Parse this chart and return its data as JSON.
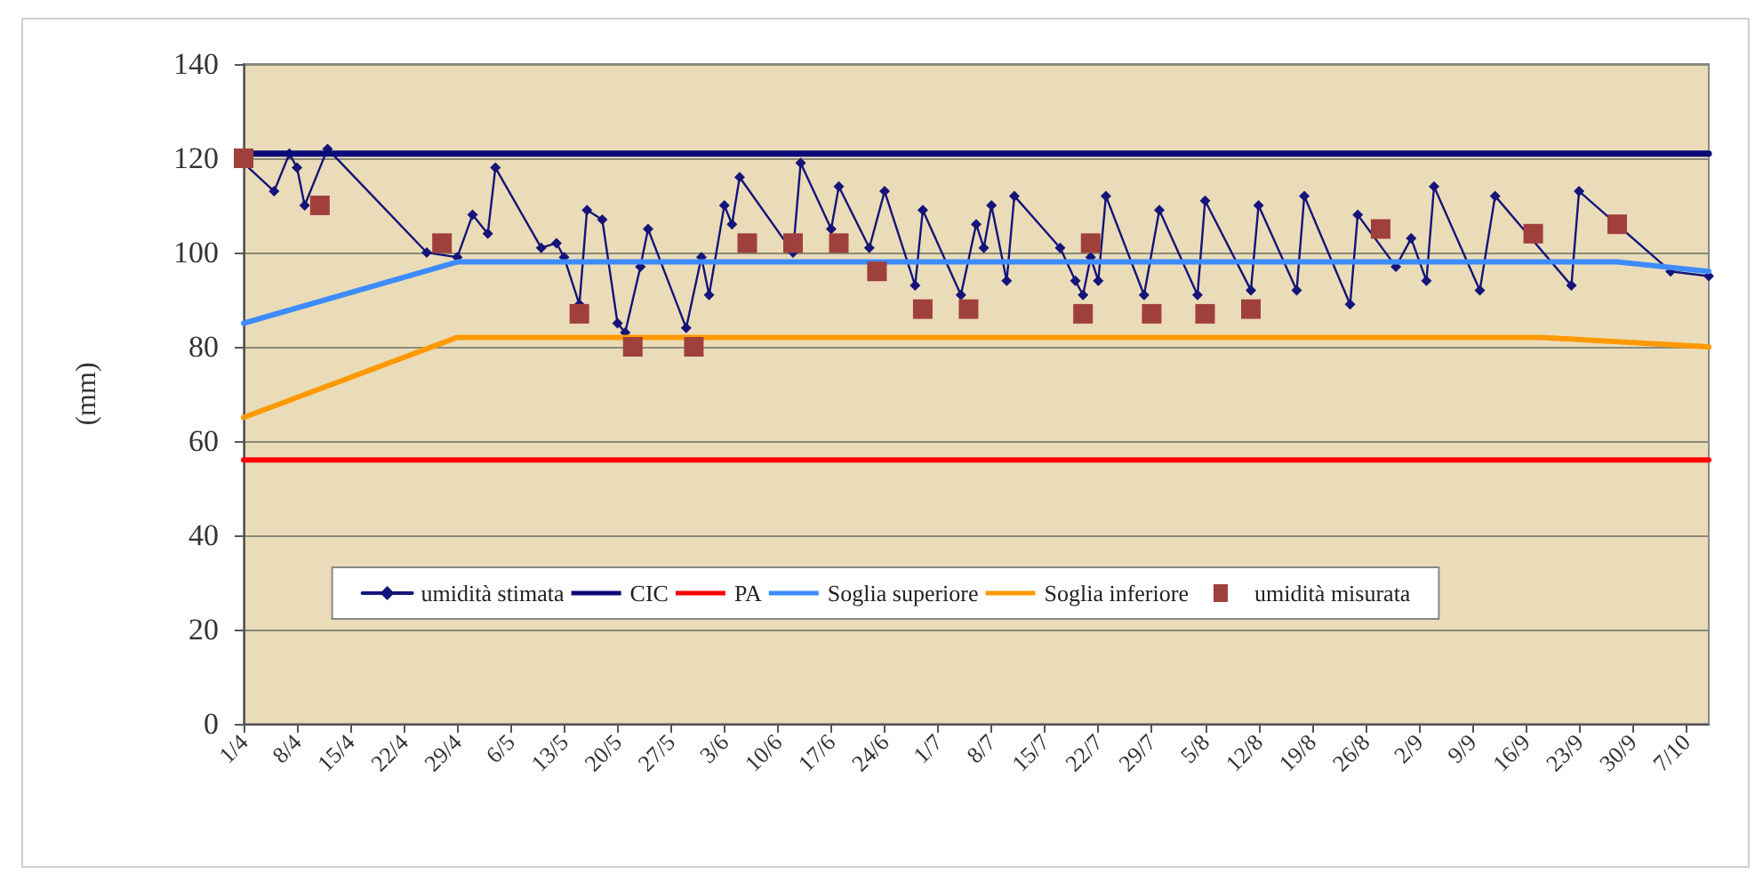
{
  "chart_data": {
    "type": "line",
    "ylabel": "(mm)",
    "xlim": [
      "--04-01",
      "--10-10"
    ],
    "xticks": [
      {
        "value": "--04-01",
        "label": "1/4"
      },
      {
        "value": "--04-08",
        "label": "8/4"
      },
      {
        "value": "--04-15",
        "label": "15/4"
      },
      {
        "value": "--04-22",
        "label": "22/4"
      },
      {
        "value": "--04-29",
        "label": "29/4"
      },
      {
        "value": "--05-06",
        "label": "6/5"
      },
      {
        "value": "--05-13",
        "label": "13/5"
      },
      {
        "value": "--05-20",
        "label": "20/5"
      },
      {
        "value": "--05-27",
        "label": "27/5"
      },
      {
        "value": "--06-03",
        "label": "3/6"
      },
      {
        "value": "--06-10",
        "label": "10/6"
      },
      {
        "value": "--06-17",
        "label": "17/6"
      },
      {
        "value": "--06-24",
        "label": "24/6"
      },
      {
        "value": "--07-01",
        "label": "1/7"
      },
      {
        "value": "--07-08",
        "label": "8/7"
      },
      {
        "value": "--07-15",
        "label": "15/7"
      },
      {
        "value": "--07-22",
        "label": "22/7"
      },
      {
        "value": "--07-29",
        "label": "29/7"
      },
      {
        "value": "--08-05",
        "label": "5/8"
      },
      {
        "value": "--08-12",
        "label": "12/8"
      },
      {
        "value": "--08-19",
        "label": "19/8"
      },
      {
        "value": "--08-26",
        "label": "26/8"
      },
      {
        "value": "--09-02",
        "label": "2/9"
      },
      {
        "value": "--09-09",
        "label": "9/9"
      },
      {
        "value": "--09-16",
        "label": "16/9"
      },
      {
        "value": "--09-23",
        "label": "23/9"
      },
      {
        "value": "--09-30",
        "label": "30/9"
      },
      {
        "value": "--10-07",
        "label": "7/10"
      }
    ],
    "ylim": [
      0,
      140
    ],
    "yticks": [
      0,
      20,
      40,
      60,
      80,
      100,
      120,
      140
    ],
    "grid": "y",
    "legend": "bottom",
    "series": [
      {
        "name": "umidità stimata",
        "color": "#14147a",
        "marker": "diamond",
        "x": [
          "--04-01",
          "--04-05",
          "--04-07",
          "--04-08",
          "--04-09",
          "--04-12",
          "--04-25",
          "--04-29",
          "--05-01",
          "--05-03",
          "--05-04",
          "--05-10",
          "--05-12",
          "--05-13",
          "--05-15",
          "--05-16",
          "--05-18",
          "--05-20",
          "--05-21",
          "--05-23",
          "--05-24",
          "--05-29",
          "--05-31",
          "--06-01",
          "--06-03",
          "--06-04",
          "--06-05",
          "--06-12",
          "--06-13",
          "--06-17",
          "--06-18",
          "--06-22",
          "--06-24",
          "--06-28",
          "--06-29",
          "--07-04",
          "--07-06",
          "--07-07",
          "--07-08",
          "--07-10",
          "--07-11",
          "--07-17",
          "--07-19",
          "--07-20",
          "--07-21",
          "--07-22",
          "--07-23",
          "--07-28",
          "--07-30",
          "--08-04",
          "--08-05",
          "--08-11",
          "--08-12",
          "--08-17",
          "--08-18",
          "--08-24",
          "--08-25",
          "--08-30",
          "--09-01",
          "--09-03",
          "--09-04",
          "--09-10",
          "--09-12",
          "--09-22",
          "--09-23",
          "--10-05",
          "--10-10"
        ],
        "values": [
          119,
          113,
          121,
          118,
          110,
          122,
          100,
          99,
          108,
          104,
          118,
          101,
          102,
          99,
          89,
          109,
          107,
          85,
          83,
          97,
          105,
          84,
          99,
          91,
          110,
          106,
          116,
          100,
          119,
          105,
          114,
          101,
          113,
          93,
          109,
          91,
          106,
          101,
          110,
          94,
          112,
          101,
          94,
          91,
          99,
          94,
          112,
          91,
          109,
          91,
          111,
          92,
          110,
          92,
          112,
          89,
          108,
          97,
          103,
          94,
          114,
          92,
          112,
          93,
          113,
          96,
          95
        ]
      },
      {
        "name": "CIC",
        "color": "#0a0a78",
        "marker": "none",
        "x": [
          "--04-01",
          "--10-10"
        ],
        "values": [
          121,
          121
        ]
      },
      {
        "name": "PA",
        "color": "#ff0000",
        "marker": "none",
        "x": [
          "--04-01",
          "--10-10"
        ],
        "values": [
          56,
          56
        ]
      },
      {
        "name": "Soglia superiore",
        "color": "#3d8bff",
        "marker": "none",
        "x": [
          "--04-01",
          "--04-29",
          "--09-28",
          "--10-10"
        ],
        "values": [
          85,
          98,
          98,
          96
        ]
      },
      {
        "name": "Soglia inferiore",
        "color": "#ff9900",
        "marker": "none",
        "x": [
          "--04-01",
          "--04-29",
          "--09-18",
          "--10-10"
        ],
        "values": [
          65,
          82,
          82,
          80
        ]
      },
      {
        "name": "umidità misurata",
        "type": "scatter",
        "color": "#a0403c",
        "marker": "square",
        "x": [
          "--04-01",
          "--04-11",
          "--04-27",
          "--05-15",
          "--05-22",
          "--05-30",
          "--06-06",
          "--06-12",
          "--06-18",
          "--06-23",
          "--06-29",
          "--07-05",
          "--07-20",
          "--07-21",
          "--07-29",
          "--08-05",
          "--08-11",
          "--08-28",
          "--09-17",
          "--09-28"
        ],
        "values": [
          120,
          110,
          102,
          87,
          80,
          80,
          102,
          102,
          102,
          96,
          88,
          88,
          87,
          102,
          87,
          87,
          88,
          105,
          104,
          106
        ]
      }
    ]
  }
}
